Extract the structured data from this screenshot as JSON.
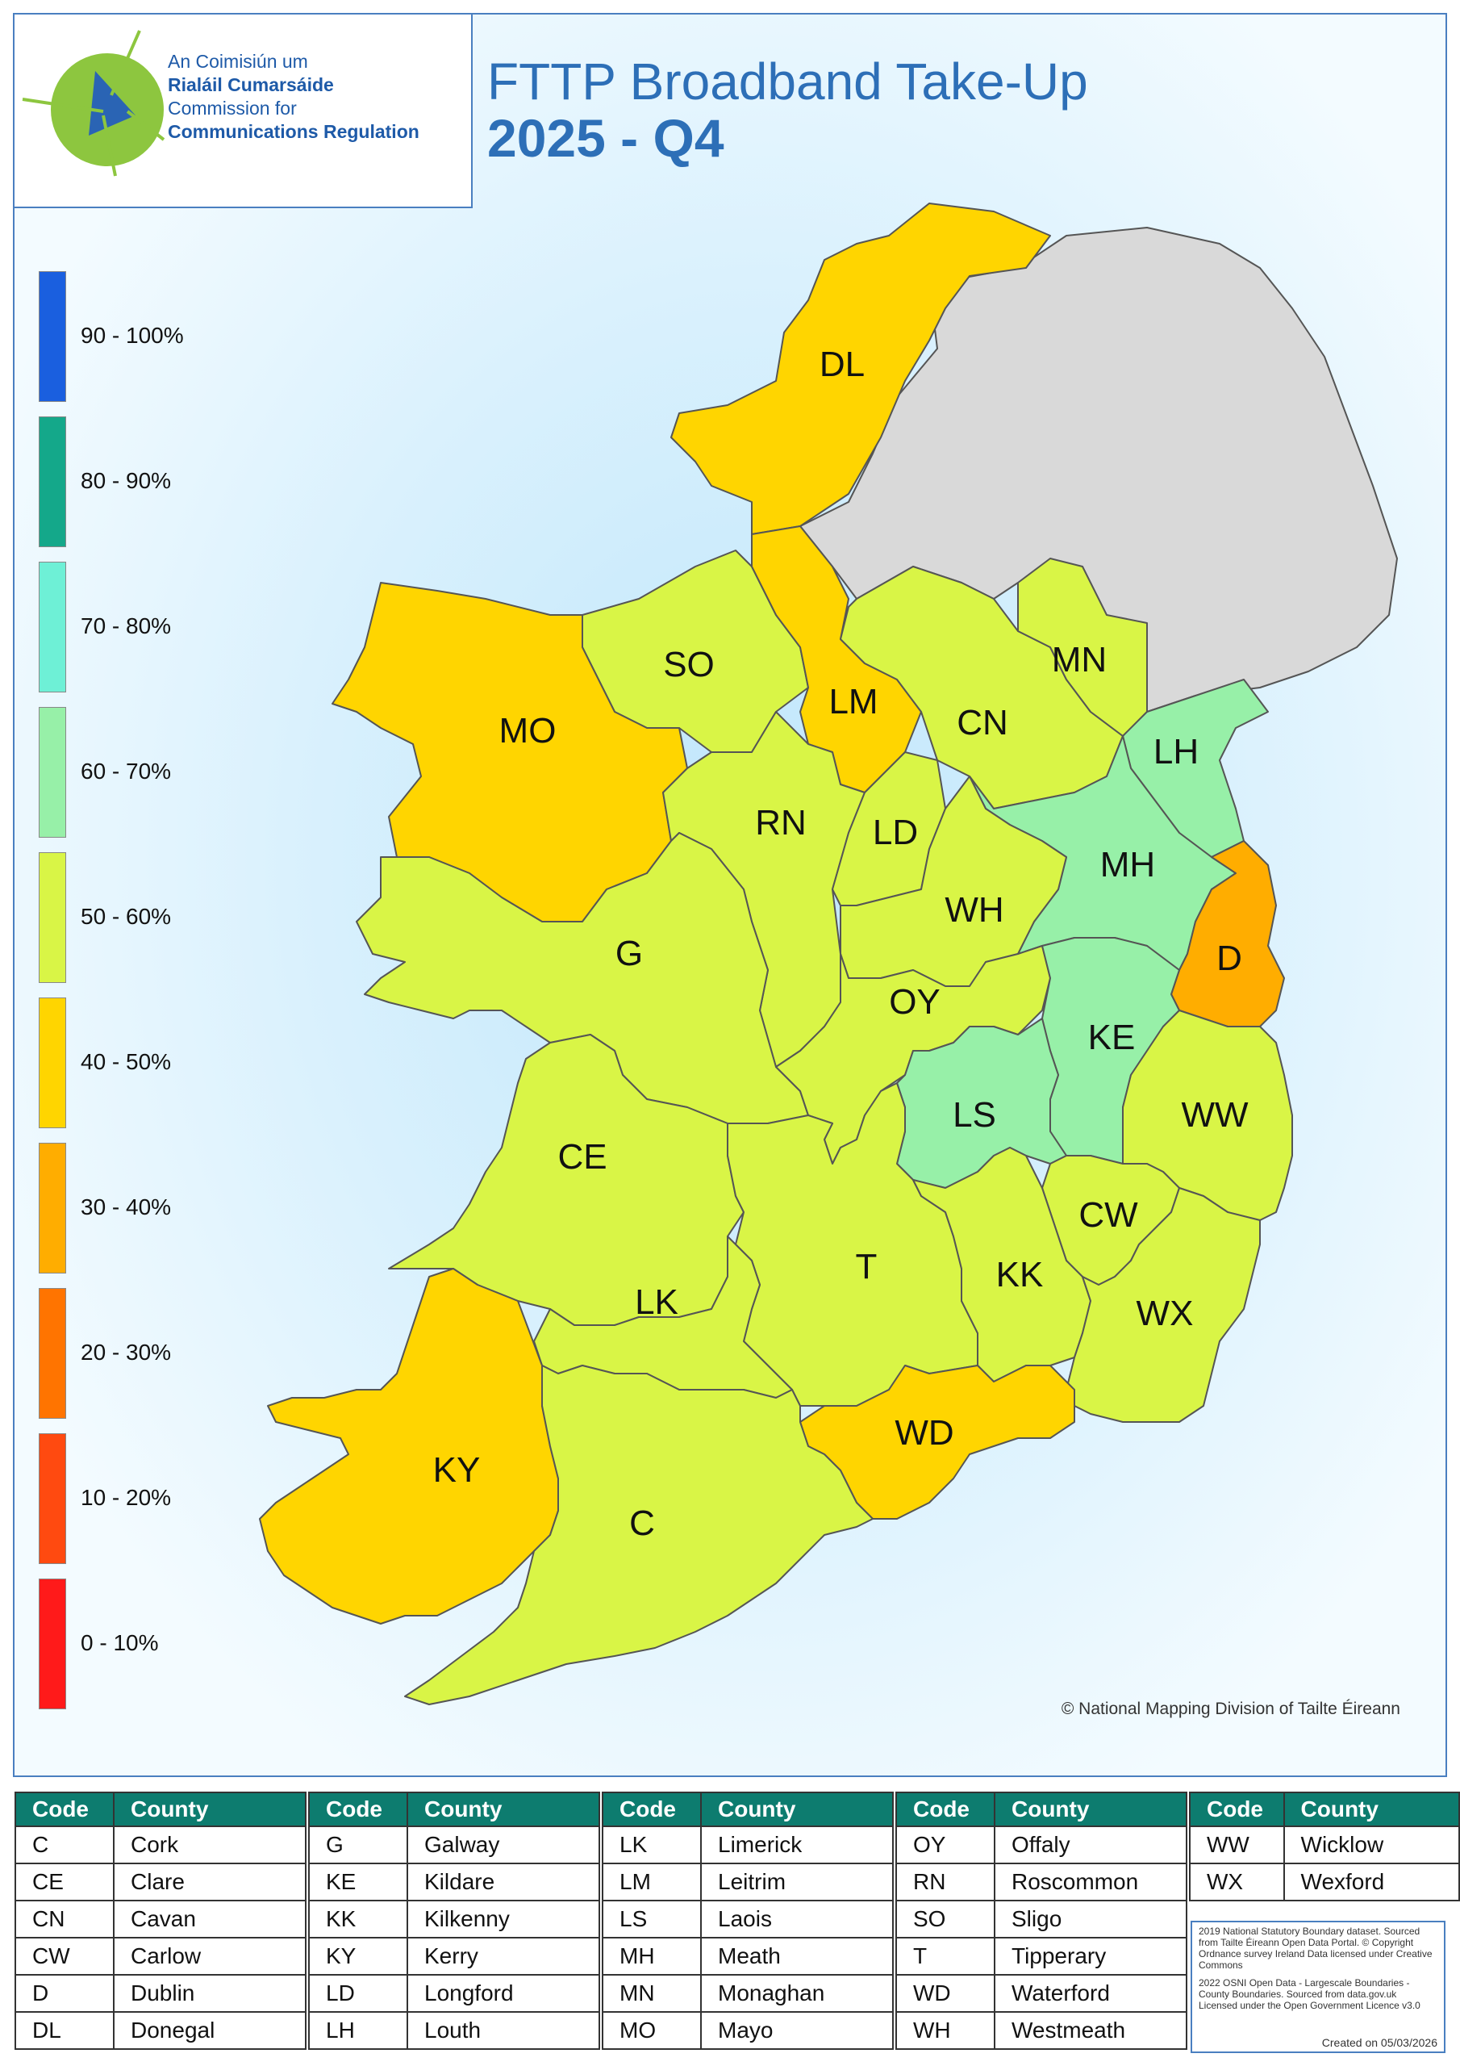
{
  "logo": {
    "line1": "An Coimisiún um",
    "line2": "Rialáil Cumarsáide",
    "line3": "Commission for",
    "line4": "Communications Regulation"
  },
  "title": {
    "main": "FTTP Broadband Take-Up",
    "period": "2025 - Q4"
  },
  "legend": [
    {
      "label": "90 - 100%",
      "color": "#1a5fdf"
    },
    {
      "label": "80 - 90%",
      "color": "#14a88a"
    },
    {
      "label": "70 - 80%",
      "color": "#6ef0d6"
    },
    {
      "label": "60 - 70%",
      "color": "#97f0a8"
    },
    {
      "label": "50 - 60%",
      "color": "#d9f546"
    },
    {
      "label": "40 - 50%",
      "color": "#ffd500"
    },
    {
      "label": "30 - 40%",
      "color": "#ffad00"
    },
    {
      "label": "20 - 30%",
      "color": "#ff7400"
    },
    {
      "label": "10 - 20%",
      "color": "#ff4a10"
    },
    {
      "label": "0 - 10%",
      "color": "#ff1a1a"
    }
  ],
  "map": {
    "northern_ireland_color": "#d9d9d9",
    "counties": [
      {
        "code": "DL",
        "band": "40 - 50%",
        "color": "#ffd500"
      },
      {
        "code": "SO",
        "band": "50 - 60%",
        "color": "#d9f546"
      },
      {
        "code": "LM",
        "band": "40 - 50%",
        "color": "#ffd500"
      },
      {
        "code": "MO",
        "band": "40 - 50%",
        "color": "#ffd500"
      },
      {
        "code": "CN",
        "band": "50 - 60%",
        "color": "#d9f546"
      },
      {
        "code": "MN",
        "band": "50 - 60%",
        "color": "#d9f546"
      },
      {
        "code": "LH",
        "band": "60 - 70%",
        "color": "#97f0a8"
      },
      {
        "code": "RN",
        "band": "50 - 60%",
        "color": "#d9f546"
      },
      {
        "code": "LD",
        "band": "50 - 60%",
        "color": "#d9f546"
      },
      {
        "code": "MH",
        "band": "60 - 70%",
        "color": "#97f0a8"
      },
      {
        "code": "WH",
        "band": "50 - 60%",
        "color": "#d9f546"
      },
      {
        "code": "G",
        "band": "50 - 60%",
        "color": "#d9f546"
      },
      {
        "code": "D",
        "band": "30 - 40%",
        "color": "#ffad00"
      },
      {
        "code": "OY",
        "band": "50 - 60%",
        "color": "#d9f546"
      },
      {
        "code": "KE",
        "band": "60 - 70%",
        "color": "#97f0a8"
      },
      {
        "code": "LS",
        "band": "60 - 70%",
        "color": "#97f0a8"
      },
      {
        "code": "WW",
        "band": "50 - 60%",
        "color": "#d9f546"
      },
      {
        "code": "CE",
        "band": "50 - 60%",
        "color": "#d9f546"
      },
      {
        "code": "CW",
        "band": "50 - 60%",
        "color": "#d9f546"
      },
      {
        "code": "T",
        "band": "50 - 60%",
        "color": "#d9f546"
      },
      {
        "code": "KK",
        "band": "50 - 60%",
        "color": "#d9f546"
      },
      {
        "code": "LK",
        "band": "50 - 60%",
        "color": "#d9f546"
      },
      {
        "code": "WX",
        "band": "50 - 60%",
        "color": "#d9f546"
      },
      {
        "code": "WD",
        "band": "40 - 50%",
        "color": "#ffd500"
      },
      {
        "code": "KY",
        "band": "40 - 50%",
        "color": "#ffd500"
      },
      {
        "code": "C",
        "band": "50 - 60%",
        "color": "#d9f546"
      }
    ]
  },
  "copyright": "© National Mapping Division of Tailte Éireann",
  "tables": {
    "header_code": "Code",
    "header_county": "County",
    "groups": [
      [
        [
          "C",
          "Cork"
        ],
        [
          "CE",
          "Clare"
        ],
        [
          "CN",
          "Cavan"
        ],
        [
          "CW",
          "Carlow"
        ],
        [
          "D",
          "Dublin"
        ],
        [
          "DL",
          "Donegal"
        ]
      ],
      [
        [
          "G",
          "Galway"
        ],
        [
          "KE",
          "Kildare"
        ],
        [
          "KK",
          "Kilkenny"
        ],
        [
          "KY",
          "Kerry"
        ],
        [
          "LD",
          "Longford"
        ],
        [
          "LH",
          "Louth"
        ]
      ],
      [
        [
          "LK",
          "Limerick"
        ],
        [
          "LM",
          "Leitrim"
        ],
        [
          "LS",
          "Laois"
        ],
        [
          "MH",
          "Meath"
        ],
        [
          "MN",
          "Monaghan"
        ],
        [
          "MO",
          "Mayo"
        ]
      ],
      [
        [
          "OY",
          "Offaly"
        ],
        [
          "RN",
          "Roscommon"
        ],
        [
          "SO",
          "Sligo"
        ],
        [
          "T",
          "Tipperary"
        ],
        [
          "WD",
          "Waterford"
        ],
        [
          "WH",
          "Westmeath"
        ]
      ],
      [
        [
          "WW",
          "Wicklow"
        ],
        [
          "WX",
          "Wexford"
        ]
      ]
    ]
  },
  "sources": {
    "p1": "2019 National Statutory Boundary dataset. Sourced from Tailte Éireann Open Data Portal. © Copyright Ordnance survey Ireland Data licensed under Creative Commons",
    "p2": "2022 OSNI Open Data - Largescale Boundaries - County Boundaries. Sourced from data.gov.uk Licensed under the Open Government Licence v3.0",
    "created": "Created on 05/03/2026"
  }
}
